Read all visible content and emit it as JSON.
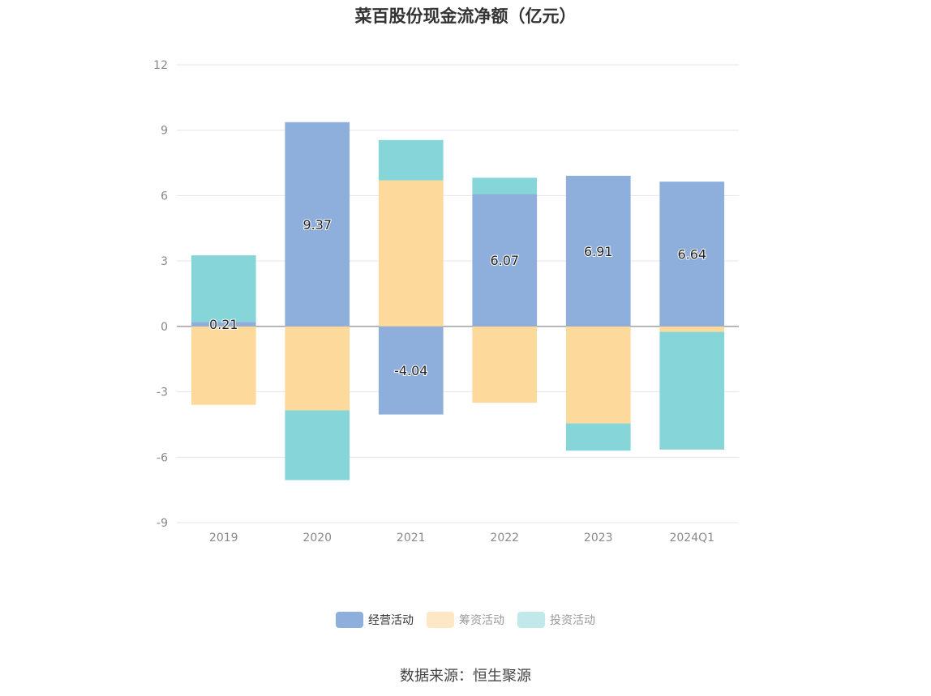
{
  "chart_data": {
    "type": "bar",
    "stacked": true,
    "title": "菜百股份现金流净额（亿元）",
    "categories": [
      "2019",
      "2020",
      "2021",
      "2022",
      "2023",
      "2024Q1"
    ],
    "ylim": [
      -9,
      12
    ],
    "yticks": [
      12,
      9,
      6,
      3,
      0,
      -3,
      -6,
      -9
    ],
    "grid": true,
    "legend_position": "bottom",
    "series": [
      {
        "name": "经营活动",
        "color": "#8eaedb",
        "values": [
          0.21,
          9.37,
          -4.04,
          6.07,
          6.91,
          6.64
        ],
        "labels": [
          "0.21",
          "9.37",
          "-4.04",
          "6.07",
          "6.91",
          "6.64"
        ]
      },
      {
        "name": "筹资活动",
        "color": "#fed99c",
        "values": [
          -3.6,
          -3.85,
          6.7,
          -3.5,
          -4.45,
          -0.25
        ]
      },
      {
        "name": "投资活动",
        "color": "#86d5d9",
        "values": [
          3.05,
          -3.2,
          1.85,
          0.75,
          -1.25,
          -5.4
        ]
      }
    ]
  },
  "legend": [
    {
      "name": "经营活动",
      "color": "#8eaedb",
      "text_color": "#333333"
    },
    {
      "name": "筹资活动",
      "color": "#fde7c5",
      "text_color": "#999999"
    },
    {
      "name": "投资活动",
      "color": "#c2e9ea",
      "text_color": "#999999"
    }
  ],
  "source": "数据来源：恒生聚源"
}
